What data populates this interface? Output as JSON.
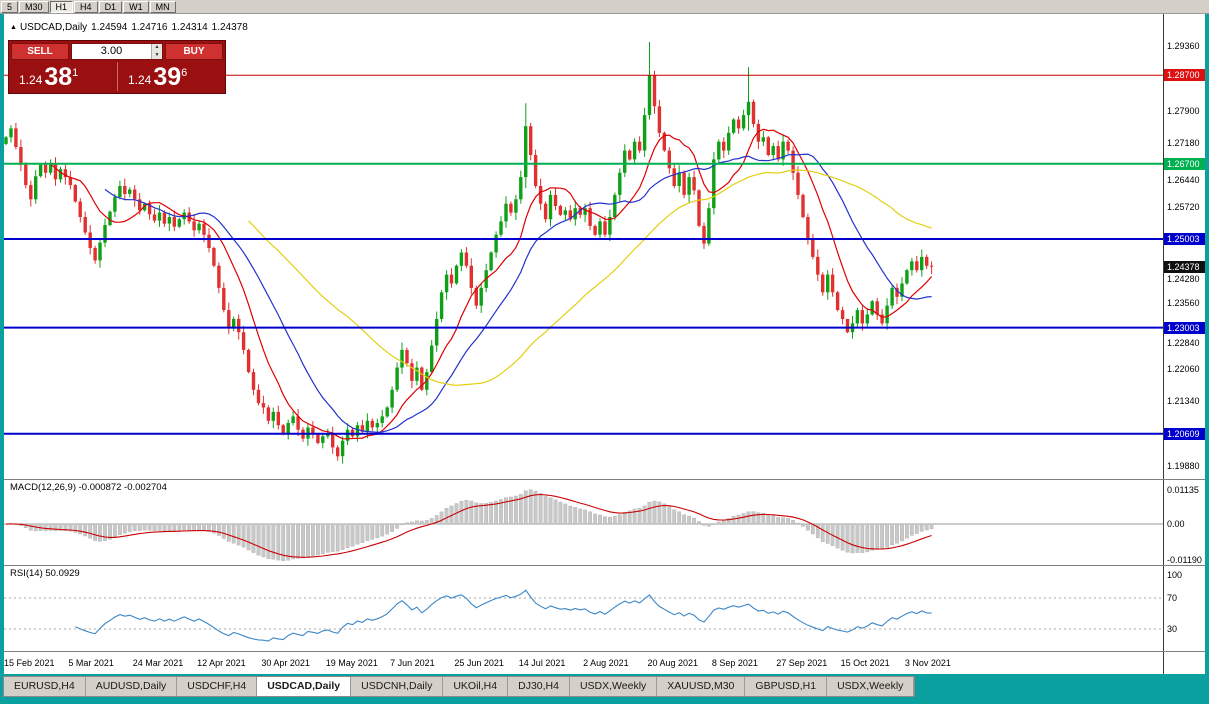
{
  "toolbar": {
    "timeframes": [
      "5",
      "M30",
      "H1",
      "H4",
      "D1",
      "W1",
      "MN"
    ],
    "active_timeframe": "H1"
  },
  "chart_header": {
    "marker": "▲",
    "symbol": "USDCAD,Daily",
    "open": "1.24594",
    "high": "1.24716",
    "low": "1.24314",
    "close": "1.24378"
  },
  "trade_panel": {
    "sell_label": "SELL",
    "buy_label": "BUY",
    "volume": "3.00",
    "spin_up": "▲",
    "spin_down": "▼",
    "sell_price": {
      "prefix": "1.24",
      "big": "38",
      "sup": "1"
    },
    "buy_price": {
      "prefix": "1.24",
      "big": "39",
      "sup": "6"
    }
  },
  "panels": {
    "macd_label": "MACD(12,26,9) -0.000872 -0.002704",
    "rsi_label": "RSI(14) 50.0929"
  },
  "price_scale": [
    {
      "label": "1.29360",
      "price": 1.2936,
      "type": "plain"
    },
    {
      "label": "1.28700",
      "price": 1.287,
      "type": "red"
    },
    {
      "label": "1.27900",
      "price": 1.279,
      "type": "plain"
    },
    {
      "label": "1.27180",
      "price": 1.2718,
      "type": "plain"
    },
    {
      "label": "1.26700",
      "price": 1.267,
      "type": "green"
    },
    {
      "label": "1.26440",
      "price": 1.2644,
      "type": "plain",
      "dy": 5
    },
    {
      "label": "1.25720",
      "price": 1.2572,
      "type": "plain"
    },
    {
      "label": "1.25003",
      "price": 1.25003,
      "type": "blue"
    },
    {
      "label": "1.24378",
      "price": 1.24378,
      "type": "black"
    },
    {
      "label": "1.24280",
      "price": 1.2428,
      "type": "plain",
      "dy": 8
    },
    {
      "label": "1.23560",
      "price": 1.2356,
      "type": "plain"
    },
    {
      "label": "1.23003",
      "price": 1.23003,
      "type": "blue"
    },
    {
      "label": "1.22840",
      "price": 1.2284,
      "type": "plain",
      "dy": 8
    },
    {
      "label": "1.22060",
      "price": 1.2206,
      "type": "plain"
    },
    {
      "label": "1.21340",
      "price": 1.2134,
      "type": "plain"
    },
    {
      "label": "1.20609",
      "price": 1.20609,
      "type": "blue"
    },
    {
      "label": "1.19880",
      "price": 1.1988,
      "type": "plain"
    }
  ],
  "indicator_scales": {
    "macd": [
      {
        "label": "0.01135",
        "v": 0.01135
      },
      {
        "label": "0.00",
        "v": 0
      },
      {
        "label": "-0.01190",
        "v": -0.0119
      }
    ],
    "rsi": [
      {
        "label": "100",
        "v": 100
      },
      {
        "label": "70",
        "v": 70
      },
      {
        "label": "30",
        "v": 30
      }
    ]
  },
  "tabs": {
    "items": [
      "EURUSD,H4",
      "AUDUSD,Daily",
      "USDCHF,H4",
      "USDCAD,Daily",
      "USDCNH,Daily",
      "UKOil,H4",
      "DJ30,H4",
      "USDX,Weekly",
      "XAUUSD,M30",
      "GBPUSD,H1",
      "USDX,Weekly"
    ],
    "active_index": 3
  },
  "colors": {
    "frame_teal": "#0ba0a0",
    "candle_up": "#0fa018",
    "candle_down": "#e03030",
    "macd_histogram": "#c8c8c8",
    "macd_signal": "#cc0000",
    "rsi_line": "#3a87c8",
    "badge_red": "#dd1111",
    "badge_green": "#00b050",
    "badge_blue": "#0000cc",
    "badge_black": "#101010"
  },
  "chart_data": {
    "type": "candlestick",
    "symbol": "USDCAD",
    "timeframe": "Daily",
    "ylim": [
      1.1961,
      1.3008
    ],
    "first_open": 1.2715,
    "closes": [
      1.273,
      1.275,
      1.2708,
      1.2668,
      1.2622,
      1.259,
      1.2642,
      1.2668,
      1.265,
      1.2668,
      1.2635,
      1.2658,
      1.264,
      1.2622,
      1.2585,
      1.255,
      1.2515,
      1.248,
      1.2452,
      1.2492,
      1.2532,
      1.2562,
      1.2595,
      1.262,
      1.2602,
      1.2612,
      1.259,
      1.2565,
      1.258,
      1.2556,
      1.2542,
      1.256,
      1.2535,
      1.255,
      1.2528,
      1.2545,
      1.256,
      1.254,
      1.252,
      1.2535,
      1.251,
      1.248,
      1.244,
      1.239,
      1.234,
      1.23,
      1.232,
      1.229,
      1.225,
      1.22,
      1.216,
      1.213,
      1.212,
      1.209,
      1.211,
      1.208,
      1.206,
      1.2085,
      1.21,
      1.207,
      1.205,
      1.2075,
      1.206,
      1.204,
      1.2055,
      1.206,
      1.203,
      1.201,
      1.2045,
      1.207,
      1.2055,
      1.208,
      1.2065,
      1.209,
      1.2075,
      1.2085,
      1.21,
      1.212,
      1.216,
      1.221,
      1.225,
      1.222,
      1.218,
      1.221,
      1.216,
      1.22,
      1.226,
      1.232,
      1.238,
      1.242,
      1.24,
      1.244,
      1.247,
      1.244,
      1.239,
      1.235,
      1.239,
      1.243,
      1.247,
      1.251,
      1.254,
      1.258,
      1.256,
      1.259,
      1.264,
      1.2755,
      1.269,
      1.262,
      1.258,
      1.2545,
      1.26,
      1.2575,
      1.2555,
      1.2565,
      1.2545,
      1.257,
      1.2555,
      1.257,
      1.253,
      1.251,
      1.254,
      1.251,
      1.255,
      1.26,
      1.265,
      1.27,
      1.268,
      1.272,
      1.27,
      1.278,
      1.287,
      1.28,
      1.274,
      1.27,
      1.266,
      1.262,
      1.265,
      1.26,
      1.264,
      1.261,
      1.253,
      1.249,
      1.257,
      1.268,
      1.272,
      1.27,
      1.274,
      1.277,
      1.275,
      1.278,
      1.281,
      1.276,
      1.272,
      1.273,
      1.269,
      1.271,
      1.268,
      1.272,
      1.27,
      1.265,
      1.26,
      1.255,
      1.25,
      1.246,
      1.242,
      1.238,
      1.242,
      1.238,
      1.234,
      1.232,
      1.229,
      1.231,
      1.234,
      1.231,
      1.233,
      1.236,
      1.233,
      1.231,
      1.235,
      1.239,
      1.237,
      1.24,
      1.243,
      1.245,
      1.243,
      1.246,
      1.244,
      1.24378
    ],
    "spikes": {
      "67": [
        1.2035,
        1.2
      ],
      "105": [
        1.2807,
        1.2615
      ],
      "130": [
        1.2945,
        1.277
      ],
      "150": [
        1.2888,
        1.2745
      ],
      "170": [
        1.2315,
        1.2288
      ]
    },
    "hlines": [
      {
        "price": 1.287,
        "color": "#cc0000",
        "width": 1
      },
      {
        "price": 1.267,
        "color": "#00b050",
        "width": 2
      },
      {
        "price": 1.25003,
        "color": "#0000cc",
        "width": 2
      },
      {
        "price": 1.23003,
        "color": "#0000cc",
        "width": 2
      },
      {
        "price": 1.20609,
        "color": "#0000cc",
        "width": 2
      }
    ],
    "moving_averages": [
      {
        "period": 10,
        "color": "#dd0000"
      },
      {
        "period": 21,
        "color": "#2233cc"
      },
      {
        "period": 50,
        "color": "#e3cf10"
      }
    ],
    "macd": {
      "fast": 12,
      "slow": 26,
      "signal": 9,
      "current_macd": -0.000872,
      "current_signal": -0.002704
    },
    "rsi": {
      "period": 14,
      "current": 50.0929,
      "levels": [
        70,
        30
      ]
    },
    "dates": [
      "15 Feb 2021",
      "5 Mar 2021",
      "24 Mar 2021",
      "12 Apr 2021",
      "30 Apr 2021",
      "19 May 2021",
      "7 Jun 2021",
      "25 Jun 2021",
      "14 Jul 2021",
      "2 Aug 2021",
      "20 Aug 2021",
      "8 Sep 2021",
      "27 Sep 2021",
      "15 Oct 2021",
      "3 Nov 2021"
    ]
  }
}
